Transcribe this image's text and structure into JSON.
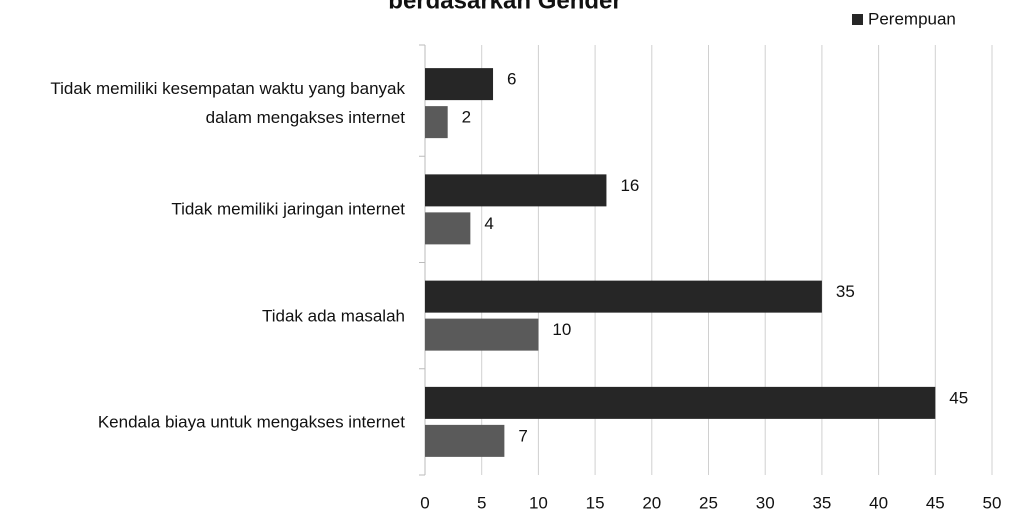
{
  "chart_data": {
    "type": "hbar",
    "title": "berdasarkan Gender",
    "categories": [
      "Tidak memiliki kesempatan waktu yang banyak dalam mengakses internet",
      "Tidak memiliki jaringan internet",
      "Tidak ada masalah",
      "Kendala biaya untuk mengakses internet"
    ],
    "series": [
      {
        "name": "Perempuan",
        "color": "#262626",
        "values": [
          6,
          16,
          35,
          45
        ]
      },
      {
        "color": "#5a5a5a",
        "values": [
          2,
          4,
          10,
          7
        ]
      }
    ],
    "xlim": [
      0,
      50
    ],
    "xticks": [
      0,
      5,
      10,
      15,
      20,
      25,
      30,
      35,
      40,
      45,
      50
    ],
    "grid": true,
    "legend": "top-right"
  }
}
